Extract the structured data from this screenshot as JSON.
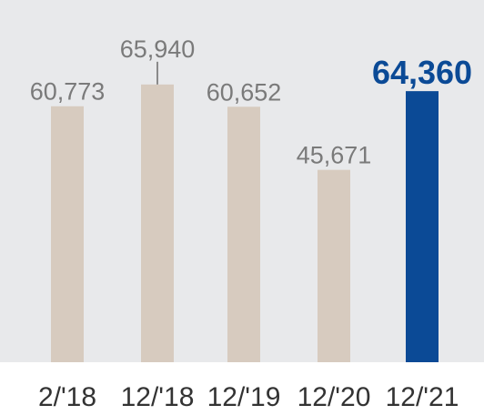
{
  "chart_data": {
    "type": "bar",
    "categories": [
      "2/'18",
      "12/'18",
      "12/'19",
      "12/'20",
      "12/'21"
    ],
    "values": [
      60773,
      65940,
      60652,
      45671,
      64360
    ],
    "value_labels": [
      "60,773",
      "65,940",
      "60,652",
      "45,671",
      "64,360"
    ],
    "highlight_index": 4,
    "ylim": [
      0,
      86000
    ],
    "grid": false,
    "legend": "none",
    "title": "",
    "xlabel": "",
    "ylabel": "",
    "colors": {
      "background": "#e8e9eb",
      "bar": "#d7cbbf",
      "highlight_bar": "#0b4a96",
      "label": "#7a7a7a",
      "highlight_label": "#0b4a96",
      "axis_label": "#333333",
      "leader_line": "#8a8a8a"
    }
  }
}
